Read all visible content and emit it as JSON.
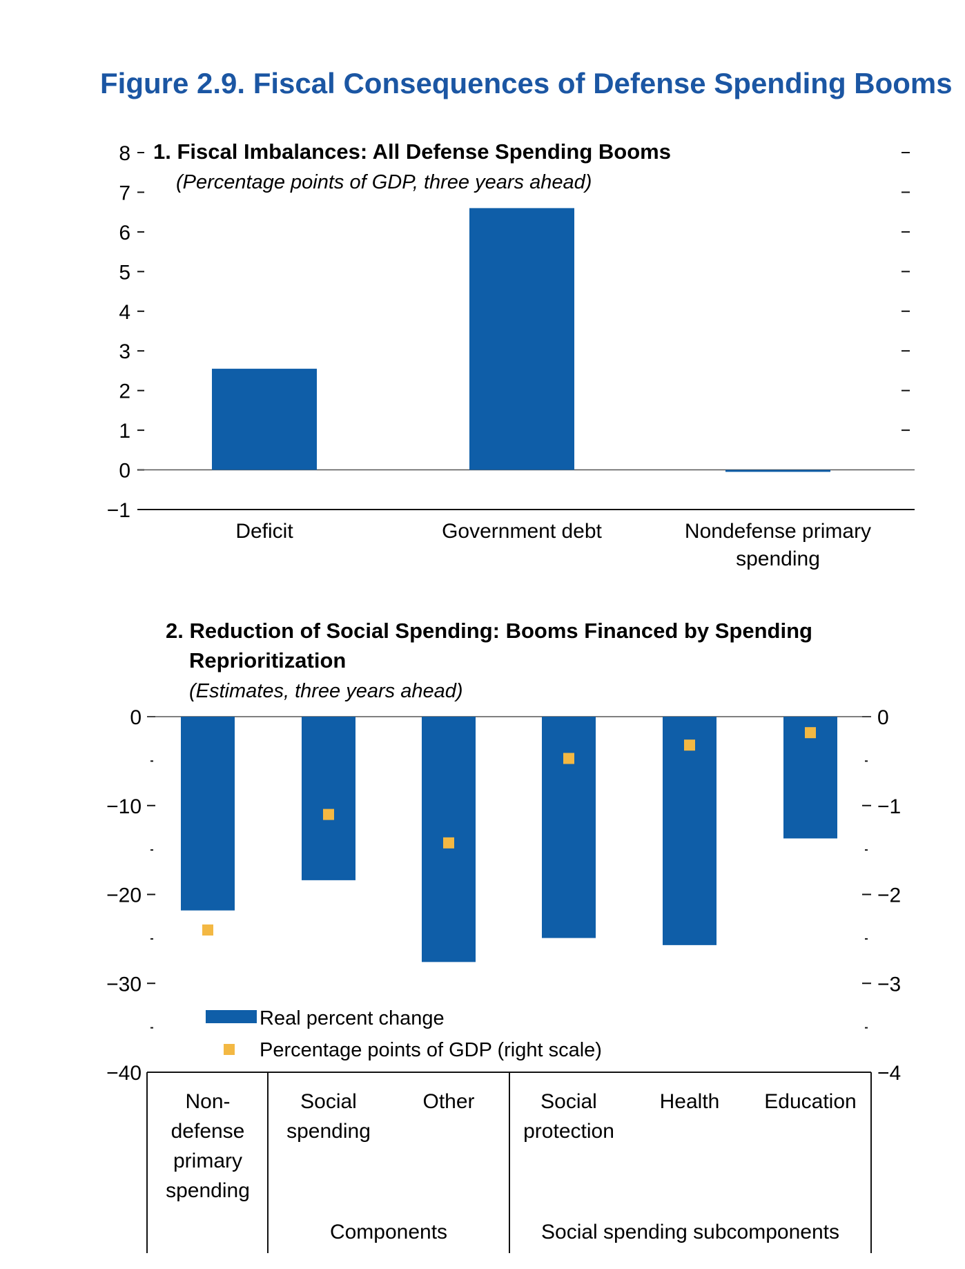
{
  "figure_title": "Figure 2.9.  Fiscal Consequences of Defense Spending Booms",
  "colors": {
    "title": "#1b56a3",
    "bar": "#0f5ea8",
    "marker": "#f3b843",
    "axis": "#111111"
  },
  "chart_data": [
    {
      "type": "bar",
      "title": "1. Fiscal Imbalances: All Defense Spending Booms",
      "subtitle": "(Percentage points of GDP, three years ahead)",
      "categories": [
        "Deficit",
        "Government debt",
        "Nondefense primary spending"
      ],
      "category_lines": [
        [
          "Deficit"
        ],
        [
          "Government debt"
        ],
        [
          "Nondefense primary",
          "spending"
        ]
      ],
      "values": [
        2.55,
        6.6,
        -0.05
      ],
      "ylim": [
        -1,
        8
      ],
      "yticks": [
        8,
        7,
        6,
        5,
        4,
        3,
        2,
        1,
        0,
        -1
      ],
      "ytick_labels": [
        "8",
        "7",
        "6",
        "5",
        "4",
        "3",
        "2",
        "1",
        "0",
        "−1"
      ]
    },
    {
      "type": "bar",
      "title_lines": [
        "2. Reduction of Social Spending: Booms Financed by Spending",
        "Reprioritization"
      ],
      "subtitle": "(Estimates, three years ahead)",
      "categories": [
        "Non-defense primary spending",
        "Social spending",
        "Other",
        "Social protection",
        "Health",
        "Education"
      ],
      "category_lines": [
        [
          "Non-",
          "defense",
          "primary",
          "spending"
        ],
        [
          "Social",
          "spending"
        ],
        [
          "Other"
        ],
        [
          "Social",
          "protection"
        ],
        [
          "Health"
        ],
        [
          "Education"
        ]
      ],
      "groups": [
        "Components",
        "Social spending subcomponents"
      ],
      "series": [
        {
          "name": "Real percent change",
          "axis": "left",
          "kind": "bar",
          "values": [
            -21.8,
            -18.4,
            -27.6,
            -24.9,
            -25.7,
            -13.7
          ]
        },
        {
          "name": "Percentage points of GDP (right scale)",
          "axis": "right",
          "kind": "marker",
          "values": [
            -2.4,
            -1.1,
            -1.42,
            -0.47,
            -0.32,
            -0.18
          ]
        }
      ],
      "ylim_left": [
        -40,
        0
      ],
      "yticks_left": [
        0,
        -10,
        -20,
        -30,
        -40
      ],
      "ytick_labels_left": [
        "0",
        "−10",
        "−20",
        "−30",
        "−40"
      ],
      "ylim_right": [
        -4,
        0
      ],
      "yticks_right": [
        0,
        -1,
        -2,
        -3,
        -4
      ],
      "ytick_labels_right": [
        "0",
        "−1",
        "−2",
        "−3",
        "−4"
      ],
      "legend": [
        "Real percent change",
        "Percentage points of GDP (right scale)"
      ]
    }
  ]
}
